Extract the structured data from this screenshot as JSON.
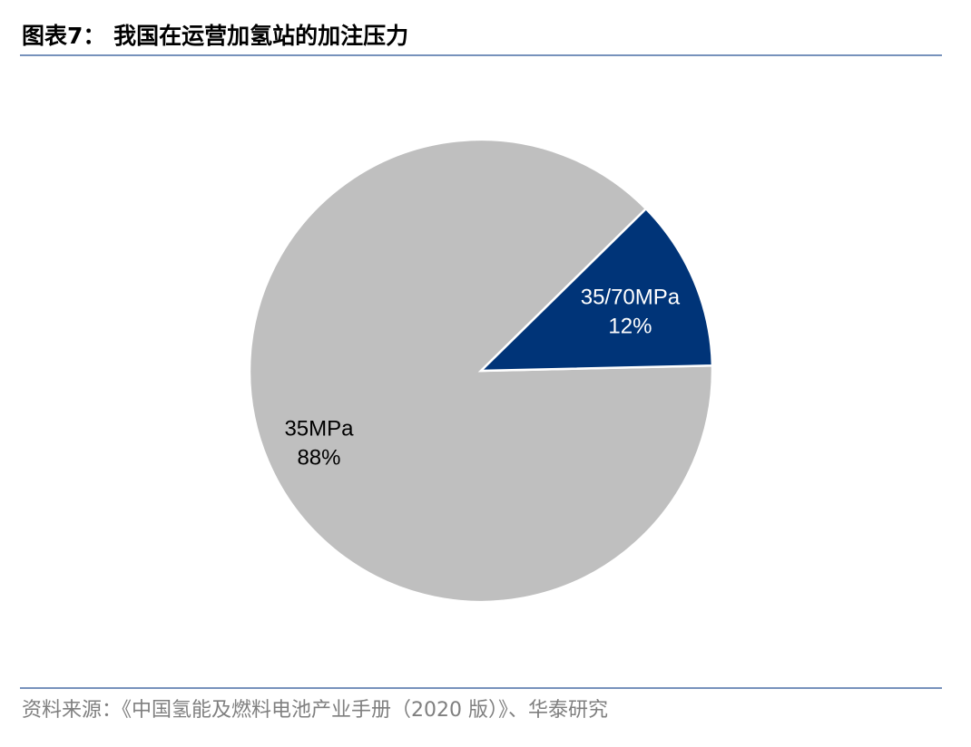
{
  "chart_data": {
    "type": "pie",
    "title": "图表7：  我国在运营加氢站的加注压力",
    "categories": [
      "35MPa",
      "35/70MPa"
    ],
    "values": [
      88,
      12
    ],
    "value_labels": [
      "88%",
      "12%"
    ],
    "colors": [
      "#bfbfbf",
      "#003478"
    ],
    "label_colors": [
      "#000000",
      "#ffffff"
    ],
    "source": "资料来源：《中国氢能及燃料电池产业手册（2020 版）》、华泰研究"
  }
}
